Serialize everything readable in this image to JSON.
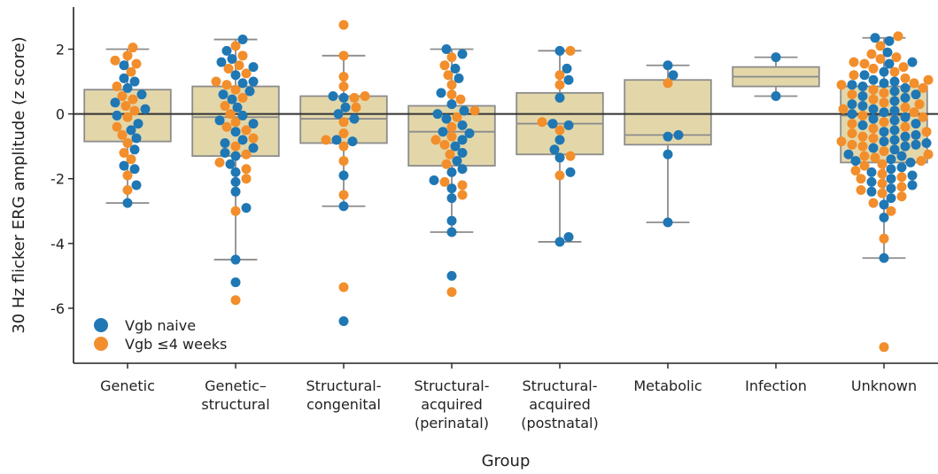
{
  "chart_data": {
    "type": "box-swarm",
    "xlabel": "Group",
    "ylabel": "30 Hz flicker ERG amplitude (z score)",
    "ylim": [
      -7.7,
      3.3
    ],
    "yticks": [
      2,
      0,
      -2,
      -4,
      -6
    ],
    "ytick_labels": [
      "2",
      "0",
      "-2",
      "-4",
      "-6"
    ],
    "reference_line_y": 0,
    "colors": {
      "box_fill": "#e3d7aa",
      "box_edge": "#8c8c8c",
      "naive": "#1f77b4",
      "vgb": "#f28e2b",
      "axis": "#222222",
      "zero_line": "#333333"
    },
    "legend": {
      "placement": "bottom-left",
      "entries": [
        {
          "label": "Vgb naive",
          "color": "#1f77b4"
        },
        {
          "label": "Vgb ≤4 weeks",
          "color": "#f28e2b"
        }
      ]
    },
    "groups": [
      {
        "label_lines": [
          "Genetic"
        ],
        "whisker_low": -2.75,
        "q1": -0.85,
        "median": 0.0,
        "q3": 0.75,
        "whisker_high": 2.0,
        "naive": [
          1.5,
          1.1,
          0.8,
          0.35,
          0.15,
          -0.05,
          -0.3,
          -0.75,
          -1.1,
          -1.6,
          -1.7,
          -2.2,
          -2.75,
          0.6,
          -0.5,
          1.0
        ],
        "vgb": [
          2.05,
          1.8,
          1.65,
          1.3,
          0.85,
          0.55,
          0.1,
          -0.1,
          -0.4,
          -0.9,
          -1.4,
          -1.9,
          -2.35,
          1.55,
          0.25,
          -0.65,
          0.45,
          -1.2
        ]
      },
      {
        "label_lines": [
          "Genetic–",
          "structural"
        ],
        "whisker_low": -4.5,
        "q1": -1.3,
        "median": -0.1,
        "q3": 0.85,
        "whisker_high": 2.3,
        "naive": [
          2.3,
          1.95,
          1.7,
          1.45,
          1.2,
          0.95,
          0.7,
          0.45,
          0.2,
          -0.05,
          -0.3,
          -0.55,
          -0.8,
          -1.05,
          -1.3,
          -1.55,
          -1.8,
          -2.1,
          -2.4,
          -2.9,
          -4.5,
          -5.2,
          0.6,
          -0.2,
          1.0,
          -0.9,
          -1.2,
          1.6
        ],
        "vgb": [
          2.1,
          1.8,
          1.5,
          1.25,
          1.0,
          0.75,
          0.5,
          0.25,
          0.0,
          -0.25,
          -0.5,
          -0.75,
          -1.0,
          -1.25,
          -1.5,
          -2.0,
          -3.0,
          -5.75,
          0.9,
          -0.4,
          1.4,
          -1.7
        ]
      },
      {
        "label_lines": [
          "Structural-",
          "congenital"
        ],
        "whisker_low": -2.85,
        "q1": -0.9,
        "median": -0.15,
        "q3": 0.55,
        "whisker_high": 1.8,
        "naive": [
          0.55,
          0.2,
          0.0,
          -0.15,
          -0.8,
          -0.85,
          -1.9,
          -2.85,
          -6.4,
          0.5
        ],
        "vgb": [
          2.75,
          1.8,
          1.15,
          0.85,
          0.55,
          0.2,
          -0.25,
          -0.6,
          -1.0,
          -1.45,
          -2.5,
          -5.35,
          0.5,
          -0.8
        ]
      },
      {
        "label_lines": [
          "Structural-",
          "acquired",
          "(perinatal)"
        ],
        "whisker_low": -3.65,
        "q1": -1.6,
        "median": -0.55,
        "q3": 0.25,
        "whisker_high": 2.0,
        "naive": [
          2.0,
          1.85,
          1.4,
          1.1,
          0.65,
          0.3,
          0.1,
          -0.15,
          -0.35,
          -0.55,
          -0.8,
          -1.0,
          -1.2,
          -1.45,
          -1.8,
          -2.05,
          -2.3,
          -2.6,
          -3.3,
          -3.65,
          -5.0,
          0.0,
          -0.6,
          -1.7
        ],
        "vgb": [
          1.75,
          1.5,
          1.2,
          0.9,
          0.45,
          0.1,
          -0.1,
          -0.4,
          -0.7,
          -0.95,
          -1.25,
          -1.55,
          -2.1,
          -2.5,
          -5.5,
          0.6,
          -0.8,
          -2.2
        ]
      },
      {
        "label_lines": [
          "Structural-",
          "acquired",
          "(postnatal)"
        ],
        "whisker_low": -3.95,
        "q1": -1.25,
        "median": -0.3,
        "q3": 0.65,
        "whisker_high": 1.95,
        "naive": [
          1.95,
          1.4,
          1.05,
          0.5,
          -0.3,
          -0.35,
          -0.8,
          -1.1,
          -1.35,
          -1.8,
          -3.8,
          -3.95
        ],
        "vgb": [
          1.95,
          1.2,
          0.9,
          -0.25,
          -0.5,
          -1.3,
          -1.9
        ]
      },
      {
        "label_lines": [
          "Metabolic"
        ],
        "whisker_low": -3.35,
        "q1": -0.95,
        "median": -0.65,
        "q3": 1.05,
        "whisker_high": 1.5,
        "naive": [
          1.5,
          1.2,
          -0.65,
          -0.7,
          -1.25,
          -3.35
        ],
        "vgb": [
          0.95
        ]
      },
      {
        "label_lines": [
          "Infection"
        ],
        "whisker_low": 0.55,
        "q1": 0.85,
        "median": 1.15,
        "q3": 1.45,
        "whisker_high": 1.75,
        "naive": [
          1.75,
          0.55
        ],
        "vgb": []
      },
      {
        "label_lines": [
          "Unknown"
        ],
        "whisker_low": -4.45,
        "q1": -1.5,
        "median": -0.05,
        "q3": 0.85,
        "whisker_high": 2.35,
        "naive": [
          2.35,
          2.25,
          1.9,
          1.55,
          1.3,
          1.0,
          0.9,
          0.85,
          0.7,
          0.55,
          0.4,
          0.25,
          0.1,
          0.0,
          -0.1,
          -0.2,
          -0.35,
          -0.5,
          -0.65,
          -0.8,
          -0.9,
          -1.0,
          -1.1,
          -1.25,
          -1.4,
          -1.5,
          -1.65,
          -1.8,
          -2.0,
          -2.2,
          -2.4,
          -2.6,
          -2.8,
          -3.2,
          -4.45,
          0.95,
          0.6,
          0.3,
          -0.3,
          -0.7,
          -1.05,
          -1.45,
          -1.9,
          1.2,
          -0.15,
          -0.95,
          0.8,
          0.15,
          -1.3,
          -2.1,
          1.6,
          0.5,
          -0.55,
          -1.7,
          0.05,
          -0.85,
          -2.3,
          1.05
        ],
        "vgb": [
          2.4,
          2.1,
          1.85,
          1.7,
          1.55,
          1.4,
          1.2,
          1.05,
          0.95,
          0.75,
          0.6,
          0.45,
          0.3,
          0.15,
          0.05,
          -0.1,
          -0.25,
          -0.4,
          -0.55,
          -0.7,
          -0.85,
          -1.0,
          -1.15,
          -1.3,
          -1.45,
          -1.6,
          -1.75,
          -1.95,
          -2.15,
          -2.35,
          -2.55,
          -2.75,
          -3.0,
          -3.85,
          -7.2,
          1.6,
          1.3,
          0.9,
          0.65,
          0.2,
          -0.3,
          -0.6,
          -0.95,
          -1.25,
          -1.55,
          -2.0,
          -2.45,
          1.75,
          0.35,
          -0.45,
          -1.35,
          -2.25,
          1.1,
          -0.05,
          -1.85,
          0.8,
          -0.75,
          1.45
        ]
      }
    ]
  }
}
